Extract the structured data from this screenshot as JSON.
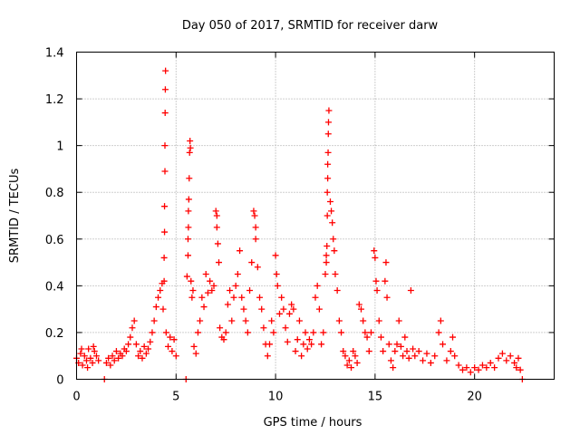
{
  "chart_data": {
    "type": "scatter",
    "title": "Day 050 of 2017, SRMTID for receiver darw",
    "xlabel": "GPS time / hours",
    "ylabel": "SRMTID / TECUs",
    "xlim": [
      0,
      24
    ],
    "ylim": [
      0,
      1.4
    ],
    "x_ticks": [
      0,
      5,
      10,
      15,
      20
    ],
    "x_tick_labels": [
      "0",
      "5",
      "10",
      "15",
      "20"
    ],
    "y_ticks": [
      0,
      0.2,
      0.4,
      0.6,
      0.8,
      1.0,
      1.2,
      1.4
    ],
    "y_tick_labels": [
      "0",
      "0.2",
      "0.4",
      "0.6",
      "0.8",
      "1",
      "1.2",
      "1.4"
    ],
    "grid": true,
    "marker": "plus",
    "marker_color": "#ff0000",
    "series": [
      {
        "name": "SRMTID",
        "points": [
          [
            0.0,
            0.09
          ],
          [
            0.1,
            0.07
          ],
          [
            0.2,
            0.11
          ],
          [
            0.3,
            0.06
          ],
          [
            0.4,
            0.1
          ],
          [
            0.5,
            0.08
          ],
          [
            0.6,
            0.13
          ],
          [
            0.7,
            0.09
          ],
          [
            0.8,
            0.07
          ],
          [
            0.9,
            0.12
          ],
          [
            1.0,
            0.1
          ],
          [
            1.1,
            0.08
          ],
          [
            0.25,
            0.13
          ],
          [
            0.55,
            0.05
          ],
          [
            0.85,
            0.14
          ],
          [
            1.4,
            0.0
          ],
          [
            1.5,
            0.07
          ],
          [
            1.6,
            0.09
          ],
          [
            1.7,
            0.06
          ],
          [
            1.8,
            0.1
          ],
          [
            1.9,
            0.08
          ],
          [
            2.0,
            0.12
          ],
          [
            2.1,
            0.09
          ],
          [
            2.2,
            0.11
          ],
          [
            2.3,
            0.1
          ],
          [
            2.4,
            0.13
          ],
          [
            2.5,
            0.12
          ],
          [
            2.6,
            0.15
          ],
          [
            2.7,
            0.18
          ],
          [
            2.8,
            0.22
          ],
          [
            2.9,
            0.25
          ],
          [
            3.0,
            0.15
          ],
          [
            3.1,
            0.1
          ],
          [
            3.2,
            0.12
          ],
          [
            3.3,
            0.09
          ],
          [
            3.4,
            0.14
          ],
          [
            3.5,
            0.11
          ],
          [
            3.6,
            0.13
          ],
          [
            3.7,
            0.16
          ],
          [
            3.8,
            0.2
          ],
          [
            3.9,
            0.25
          ],
          [
            4.0,
            0.31
          ],
          [
            4.1,
            0.35
          ],
          [
            4.2,
            0.38
          ],
          [
            4.3,
            0.41
          ],
          [
            4.35,
            0.3
          ],
          [
            4.4,
            0.42
          ],
          [
            4.4,
            0.52
          ],
          [
            4.42,
            0.63
          ],
          [
            4.42,
            0.74
          ],
          [
            4.44,
            0.89
          ],
          [
            4.44,
            1.0
          ],
          [
            4.45,
            1.14
          ],
          [
            4.46,
            1.24
          ],
          [
            4.47,
            1.32
          ],
          [
            4.5,
            0.2
          ],
          [
            4.6,
            0.14
          ],
          [
            4.7,
            0.18
          ],
          [
            4.8,
            0.12
          ],
          [
            4.9,
            0.17
          ],
          [
            5.0,
            0.1
          ],
          [
            5.5,
            0.0
          ],
          [
            5.55,
            0.44
          ],
          [
            5.6,
            0.53
          ],
          [
            5.6,
            0.6
          ],
          [
            5.62,
            0.65
          ],
          [
            5.62,
            0.72
          ],
          [
            5.64,
            0.77
          ],
          [
            5.66,
            0.86
          ],
          [
            5.68,
            0.97
          ],
          [
            5.7,
            1.02
          ],
          [
            5.72,
            0.99
          ],
          [
            5.75,
            0.42
          ],
          [
            5.8,
            0.35
          ],
          [
            5.85,
            0.38
          ],
          [
            5.9,
            0.14
          ],
          [
            6.0,
            0.11
          ],
          [
            6.1,
            0.2
          ],
          [
            6.2,
            0.25
          ],
          [
            6.3,
            0.35
          ],
          [
            6.4,
            0.31
          ],
          [
            6.5,
            0.45
          ],
          [
            6.6,
            0.37
          ],
          [
            6.7,
            0.42
          ],
          [
            6.8,
            0.38
          ],
          [
            6.9,
            0.4
          ],
          [
            7.0,
            0.72
          ],
          [
            7.05,
            0.7
          ],
          [
            7.05,
            0.65
          ],
          [
            7.1,
            0.58
          ],
          [
            7.15,
            0.5
          ],
          [
            7.2,
            0.22
          ],
          [
            7.3,
            0.18
          ],
          [
            7.4,
            0.17
          ],
          [
            7.5,
            0.2
          ],
          [
            7.6,
            0.32
          ],
          [
            7.7,
            0.38
          ],
          [
            7.8,
            0.25
          ],
          [
            7.9,
            0.35
          ],
          [
            8.0,
            0.4
          ],
          [
            8.1,
            0.45
          ],
          [
            8.2,
            0.55
          ],
          [
            8.3,
            0.35
          ],
          [
            8.4,
            0.3
          ],
          [
            8.5,
            0.25
          ],
          [
            8.6,
            0.2
          ],
          [
            8.7,
            0.38
          ],
          [
            8.8,
            0.5
          ],
          [
            8.9,
            0.72
          ],
          [
            8.95,
            0.7
          ],
          [
            9.0,
            0.65
          ],
          [
            9.0,
            0.6
          ],
          [
            9.1,
            0.48
          ],
          [
            9.2,
            0.35
          ],
          [
            9.3,
            0.3
          ],
          [
            9.4,
            0.22
          ],
          [
            9.5,
            0.15
          ],
          [
            9.6,
            0.1
          ],
          [
            9.7,
            0.15
          ],
          [
            9.8,
            0.25
          ],
          [
            9.9,
            0.2
          ],
          [
            10.0,
            0.53
          ],
          [
            10.05,
            0.45
          ],
          [
            10.1,
            0.4
          ],
          [
            10.2,
            0.28
          ],
          [
            10.3,
            0.35
          ],
          [
            10.4,
            0.3
          ],
          [
            10.5,
            0.22
          ],
          [
            10.6,
            0.16
          ],
          [
            10.7,
            0.28
          ],
          [
            10.8,
            0.32
          ],
          [
            10.9,
            0.3
          ],
          [
            11.0,
            0.12
          ],
          [
            11.1,
            0.17
          ],
          [
            11.2,
            0.25
          ],
          [
            11.3,
            0.1
          ],
          [
            11.4,
            0.15
          ],
          [
            11.5,
            0.2
          ],
          [
            11.6,
            0.13
          ],
          [
            11.7,
            0.17
          ],
          [
            11.8,
            0.15
          ],
          [
            11.9,
            0.2
          ],
          [
            12.0,
            0.35
          ],
          [
            12.1,
            0.4
          ],
          [
            12.2,
            0.3
          ],
          [
            12.3,
            0.15
          ],
          [
            12.4,
            0.2
          ],
          [
            12.5,
            0.45
          ],
          [
            12.55,
            0.5
          ],
          [
            12.55,
            0.53
          ],
          [
            12.58,
            0.57
          ],
          [
            12.6,
            0.7
          ],
          [
            12.6,
            0.8
          ],
          [
            12.62,
            0.86
          ],
          [
            12.62,
            0.92
          ],
          [
            12.64,
            0.97
          ],
          [
            12.65,
            1.05
          ],
          [
            12.66,
            1.1
          ],
          [
            12.68,
            1.15
          ],
          [
            12.75,
            0.76
          ],
          [
            12.8,
            0.72
          ],
          [
            12.85,
            0.67
          ],
          [
            12.9,
            0.6
          ],
          [
            12.95,
            0.55
          ],
          [
            13.0,
            0.45
          ],
          [
            13.1,
            0.38
          ],
          [
            13.2,
            0.25
          ],
          [
            13.3,
            0.2
          ],
          [
            13.4,
            0.12
          ],
          [
            13.5,
            0.1
          ],
          [
            13.6,
            0.06
          ],
          [
            13.7,
            0.08
          ],
          [
            13.8,
            0.05
          ],
          [
            13.9,
            0.12
          ],
          [
            14.0,
            0.1
          ],
          [
            14.1,
            0.07
          ],
          [
            14.2,
            0.32
          ],
          [
            14.3,
            0.3
          ],
          [
            14.4,
            0.25
          ],
          [
            14.5,
            0.2
          ],
          [
            14.6,
            0.18
          ],
          [
            14.7,
            0.12
          ],
          [
            14.8,
            0.2
          ],
          [
            14.95,
            0.55
          ],
          [
            15.0,
            0.52
          ],
          [
            15.05,
            0.42
          ],
          [
            15.1,
            0.38
          ],
          [
            15.2,
            0.25
          ],
          [
            15.3,
            0.18
          ],
          [
            15.4,
            0.12
          ],
          [
            15.5,
            0.42
          ],
          [
            15.55,
            0.5
          ],
          [
            15.6,
            0.35
          ],
          [
            15.7,
            0.15
          ],
          [
            15.8,
            0.08
          ],
          [
            15.9,
            0.05
          ],
          [
            16.0,
            0.12
          ],
          [
            16.1,
            0.15
          ],
          [
            16.2,
            0.25
          ],
          [
            16.3,
            0.14
          ],
          [
            16.4,
            0.1
          ],
          [
            16.5,
            0.18
          ],
          [
            16.6,
            0.12
          ],
          [
            16.7,
            0.09
          ],
          [
            16.8,
            0.38
          ],
          [
            16.9,
            0.13
          ],
          [
            17.0,
            0.1
          ],
          [
            17.2,
            0.12
          ],
          [
            17.4,
            0.08
          ],
          [
            17.6,
            0.11
          ],
          [
            17.8,
            0.07
          ],
          [
            18.0,
            0.1
          ],
          [
            18.2,
            0.2
          ],
          [
            18.3,
            0.25
          ],
          [
            18.4,
            0.15
          ],
          [
            18.6,
            0.08
          ],
          [
            18.8,
            0.12
          ],
          [
            18.9,
            0.18
          ],
          [
            19.0,
            0.1
          ],
          [
            19.2,
            0.06
          ],
          [
            19.4,
            0.04
          ],
          [
            19.6,
            0.05
          ],
          [
            19.8,
            0.03
          ],
          [
            20.0,
            0.05
          ],
          [
            20.2,
            0.04
          ],
          [
            20.4,
            0.06
          ],
          [
            20.6,
            0.05
          ],
          [
            20.8,
            0.07
          ],
          [
            21.0,
            0.05
          ],
          [
            21.2,
            0.09
          ],
          [
            21.4,
            0.11
          ],
          [
            21.6,
            0.08
          ],
          [
            21.8,
            0.1
          ],
          [
            22.0,
            0.07
          ],
          [
            22.1,
            0.05
          ],
          [
            22.2,
            0.09
          ],
          [
            22.3,
            0.04
          ],
          [
            22.4,
            0.0
          ]
        ]
      }
    ]
  }
}
